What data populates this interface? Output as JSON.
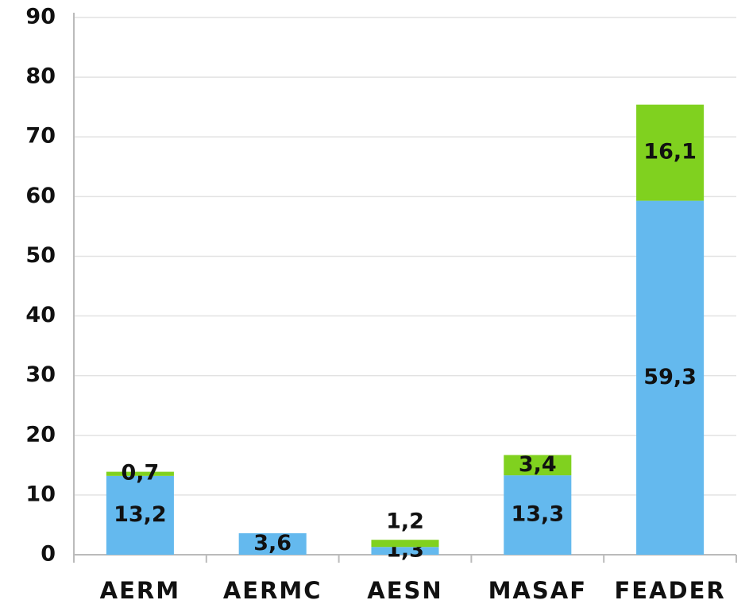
{
  "chart_data": {
    "type": "stacked-bar",
    "categories": [
      "AERM",
      "AERMC",
      "AESN",
      "MASAF",
      "FEADER"
    ],
    "series": [
      {
        "color": "#64b9ee",
        "values": [
          13.2,
          3.6,
          1.3,
          13.3,
          59.3
        ],
        "value_labels": [
          "13,2",
          "3,6",
          "1,3",
          "13,3",
          "59,3"
        ]
      },
      {
        "color": "#80d11f",
        "values": [
          0.7,
          null,
          1.2,
          3.4,
          16.1
        ],
        "value_labels": [
          "0,7",
          null,
          "1,2",
          "3,4",
          "16,1"
        ]
      }
    ],
    "ylim": [
      0,
      90
    ],
    "yticks": [
      0,
      10,
      20,
      30,
      40,
      50,
      60,
      70,
      80,
      90
    ],
    "grid": true
  }
}
